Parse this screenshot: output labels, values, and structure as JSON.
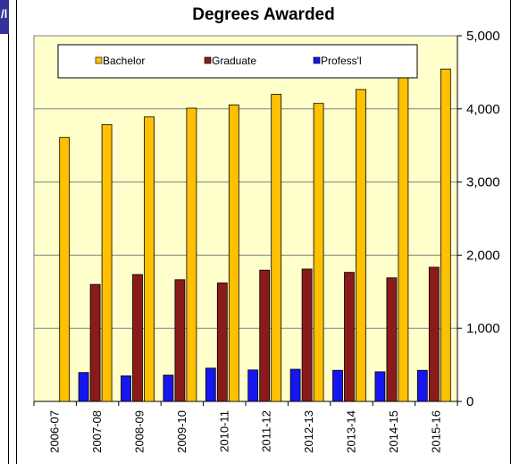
{
  "page": {
    "left_tab_glyph": "/l"
  },
  "chart_data": {
    "type": "bar",
    "title": "Degrees Awarded",
    "categories": [
      "2006-07",
      "2007-08",
      "2008-09",
      "2009-10",
      "2010-11",
      "2011-12",
      "2012-13",
      "2013-14",
      "2014-15",
      "2015-16"
    ],
    "series": [
      {
        "name": "Bachelor",
        "color": "#ffc000",
        "values": [
          3610,
          3785,
          3890,
          4010,
          4055,
          4200,
          4075,
          4265,
          4470,
          4545
        ]
      },
      {
        "name": "Graduate",
        "color": "#8b1a1a",
        "values": [
          null,
          1600,
          1735,
          1665,
          1620,
          1795,
          1810,
          1765,
          1690,
          1835
        ]
      },
      {
        "name": "Profess'l",
        "color": "#1616f0",
        "values": [
          null,
          395,
          350,
          360,
          455,
          430,
          440,
          425,
          405,
          425
        ]
      }
    ],
    "ylim": [
      0,
      5000
    ],
    "yticks": [
      "0",
      "1,000",
      "2,000",
      "3,000",
      "4,000",
      "5,000"
    ],
    "ytick_values": [
      0,
      1000,
      2000,
      3000,
      4000,
      5000
    ],
    "y_axis_side": "right",
    "grid": true,
    "plot_background": "#ffffcc",
    "legend_position": "top"
  }
}
